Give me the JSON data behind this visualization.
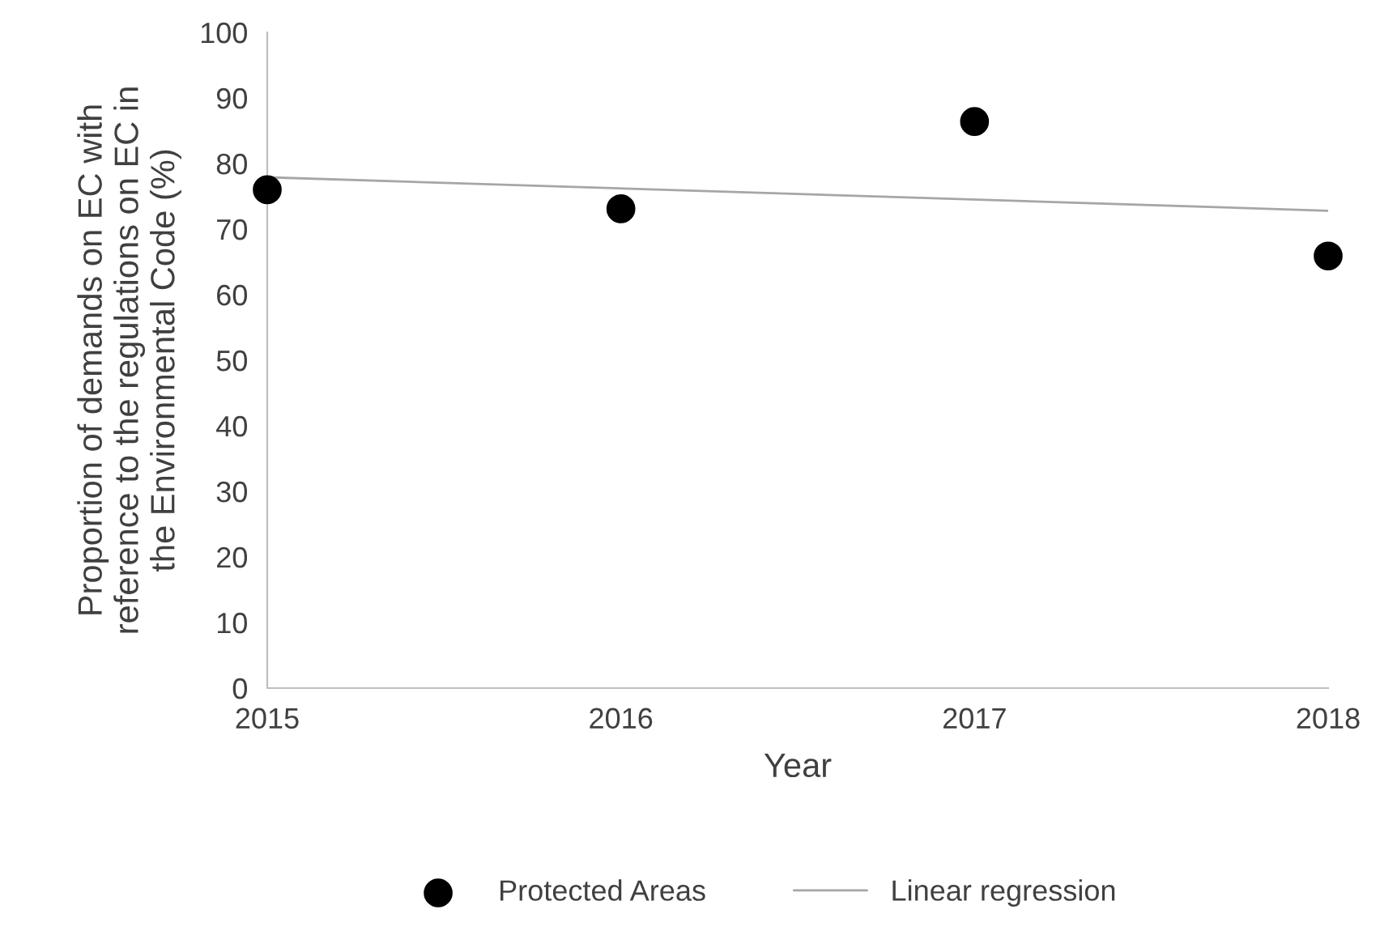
{
  "chart_data": {
    "type": "scatter",
    "xlabel": "Year",
    "ylabel": "Proportion of demands on EC with\nreference to the regulations on EC in\nthe Environmental Code (%)",
    "series": [
      {
        "name": "Protected Areas",
        "color": "#000000",
        "marker": "circle",
        "x": [
          2015,
          2016,
          2017,
          2018
        ],
        "values": [
          76.0,
          73.1,
          86.4,
          65.9
        ]
      },
      {
        "name": "Linear regression",
        "type": "line",
        "color": "#a6a6a6",
        "marker": "none",
        "line_style": "solid",
        "x": [
          2015,
          2018
        ],
        "values": [
          77.9,
          72.8
        ]
      }
    ],
    "xlim": [
      2015,
      2018
    ],
    "xticks": [
      2015,
      2016,
      2017,
      2018
    ],
    "ylim": [
      0,
      100
    ],
    "yticks": [
      0,
      10,
      20,
      30,
      40,
      50,
      60,
      70,
      80,
      90,
      100
    ],
    "grid": false,
    "legend": "bottom"
  }
}
